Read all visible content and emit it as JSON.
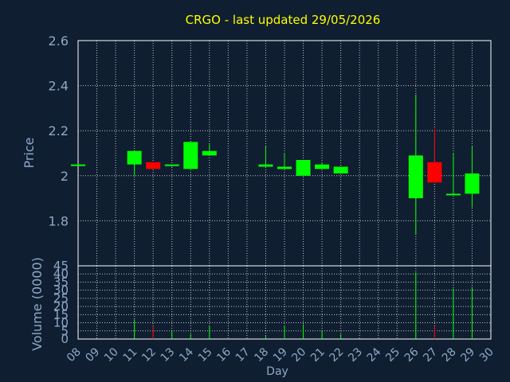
{
  "chart_data": {
    "type": "candlestick",
    "title": "CRGO - last updated 29/05/2026",
    "xlabel": "Day",
    "ylabel": "Price",
    "volume_label": "Volume (0000)",
    "ylim": [
      1.6,
      2.6
    ],
    "yticks": [
      "2.6",
      "2.4",
      "2.2",
      "2",
      "1.8"
    ],
    "vol_ylim": [
      0,
      45
    ],
    "vol_yticks": [
      "45",
      "40",
      "35",
      "30",
      "25",
      "20",
      "15",
      "10",
      "5",
      "0"
    ],
    "x_ticks": [
      "08",
      "09",
      "10",
      "11",
      "12",
      "13",
      "14",
      "15",
      "16",
      "17",
      "18",
      "19",
      "20",
      "21",
      "22",
      "23",
      "24",
      "25",
      "26",
      "27",
      "28",
      "29",
      "30"
    ],
    "grid": true,
    "up_color": "#00ff00",
    "down_color": "#ff0000",
    "candles": [
      {
        "day": 8,
        "open": 2.05,
        "high": 2.05,
        "low": 2.05,
        "close": 2.05,
        "volume": 0
      },
      {
        "day": 11,
        "open": 2.05,
        "high": 2.11,
        "low": 2.0,
        "close": 2.11,
        "volume": 12
      },
      {
        "day": 12,
        "open": 2.06,
        "high": 2.06,
        "low": 2.03,
        "close": 2.03,
        "volume": 8
      },
      {
        "day": 13,
        "open": 2.05,
        "high": 2.05,
        "low": 2.04,
        "close": 2.05,
        "volume": 5
      },
      {
        "day": 14,
        "open": 2.03,
        "high": 2.15,
        "low": 2.03,
        "close": 2.15,
        "volume": 3
      },
      {
        "day": 15,
        "open": 2.09,
        "high": 2.14,
        "low": 2.09,
        "close": 2.11,
        "volume": 8
      },
      {
        "day": 18,
        "open": 2.04,
        "high": 2.13,
        "low": 2.04,
        "close": 2.05,
        "volume": 2
      },
      {
        "day": 19,
        "open": 2.03,
        "high": 2.1,
        "low": 2.03,
        "close": 2.04,
        "volume": 8
      },
      {
        "day": 20,
        "open": 2.0,
        "high": 2.07,
        "low": 2.0,
        "close": 2.07,
        "volume": 9
      },
      {
        "day": 21,
        "open": 2.03,
        "high": 2.06,
        "low": 2.03,
        "close": 2.05,
        "volume": 5
      },
      {
        "day": 22,
        "open": 2.01,
        "high": 2.04,
        "low": 2.01,
        "close": 2.04,
        "volume": 3
      },
      {
        "day": 26,
        "open": 1.9,
        "high": 2.36,
        "low": 1.74,
        "close": 2.09,
        "volume": 41
      },
      {
        "day": 27,
        "open": 2.06,
        "high": 2.21,
        "low": 1.97,
        "close": 1.97,
        "volume": 8
      },
      {
        "day": 28,
        "open": 1.92,
        "high": 2.1,
        "low": 1.92,
        "close": 1.92,
        "volume": 31
      },
      {
        "day": 29,
        "open": 1.92,
        "high": 2.13,
        "low": 1.86,
        "close": 2.01,
        "volume": 32
      }
    ]
  }
}
